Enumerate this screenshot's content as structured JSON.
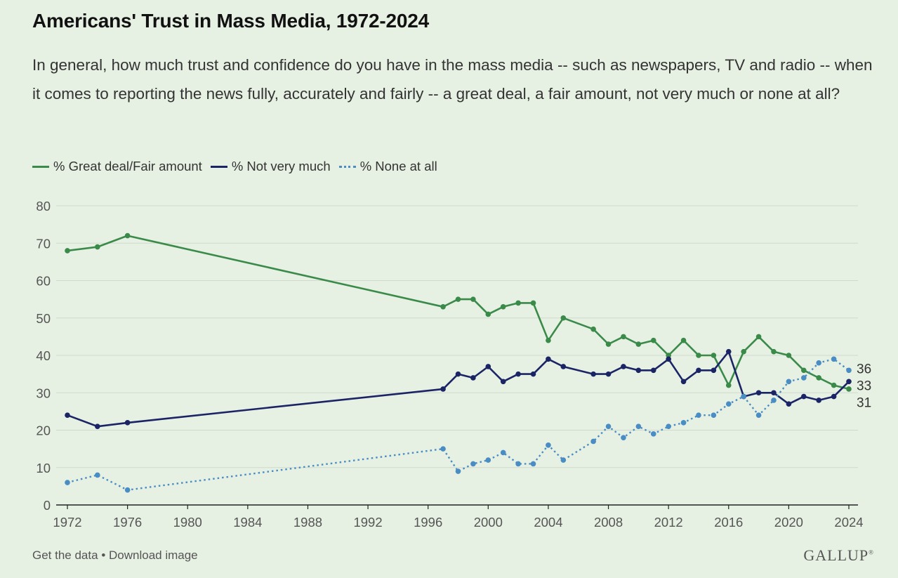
{
  "title": "Americans' Trust in Mass Media, 1972-2024",
  "subtitle": "In general, how much trust and confidence do you have in the mass media -- such as newspapers, TV and radio -- when it comes to reporting the news fully, accurately and fairly -- a great deal, a fair amount, not very much or none at all?",
  "footer": {
    "get_data": "Get the data",
    "separator": "•",
    "download": "Download image",
    "brand": "GALLUP",
    "brand_mark": "®"
  },
  "colors": {
    "background": "#e7f1e3",
    "green": "#3a8a4a",
    "navy": "#1b2566",
    "blue": "#4a8cc4",
    "grid": "#cfd9cc"
  },
  "chart_data": {
    "type": "line",
    "xlim": [
      1972,
      2024
    ],
    "ylim": [
      0,
      80
    ],
    "x_ticks": [
      "1972",
      "1976",
      "1980",
      "1984",
      "1988",
      "1992",
      "1996",
      "2000",
      "2004",
      "2008",
      "2012",
      "2016",
      "2020",
      "2024"
    ],
    "y_ticks": [
      "0",
      "10",
      "20",
      "30",
      "40",
      "50",
      "60",
      "70",
      "80"
    ],
    "grid": true,
    "legend_position": "top-left",
    "x": [
      1972,
      1974,
      1976,
      1997,
      1998,
      1999,
      2000,
      2001,
      2002,
      2003,
      2004,
      2005,
      2007,
      2008,
      2009,
      2010,
      2011,
      2012,
      2013,
      2014,
      2015,
      2016,
      2017,
      2018,
      2019,
      2020,
      2021,
      2022,
      2023,
      2024
    ],
    "series": [
      {
        "name": "% Great deal/Fair amount",
        "style": "solid",
        "color": "#3a8a4a",
        "values": [
          68,
          69,
          72,
          53,
          55,
          55,
          51,
          53,
          54,
          54,
          44,
          50,
          47,
          43,
          45,
          43,
          44,
          40,
          44,
          40,
          40,
          32,
          41,
          45,
          41,
          40,
          36,
          34,
          32,
          31
        ],
        "end_label": "31"
      },
      {
        "name": "% Not very much",
        "style": "solid",
        "color": "#1b2566",
        "values": [
          24,
          21,
          22,
          31,
          35,
          34,
          37,
          33,
          35,
          35,
          39,
          37,
          35,
          35,
          37,
          36,
          36,
          39,
          33,
          36,
          36,
          41,
          29,
          30,
          30,
          27,
          29,
          28,
          29,
          33
        ],
        "end_label": "33"
      },
      {
        "name": "% None at all",
        "style": "dotted",
        "color": "#4a8cc4",
        "values": [
          6,
          8,
          4,
          15,
          9,
          11,
          12,
          14,
          11,
          11,
          16,
          12,
          17,
          21,
          18,
          21,
          19,
          21,
          22,
          24,
          24,
          27,
          29,
          24,
          28,
          33,
          34,
          38,
          39,
          36
        ],
        "end_label": "36"
      }
    ]
  }
}
